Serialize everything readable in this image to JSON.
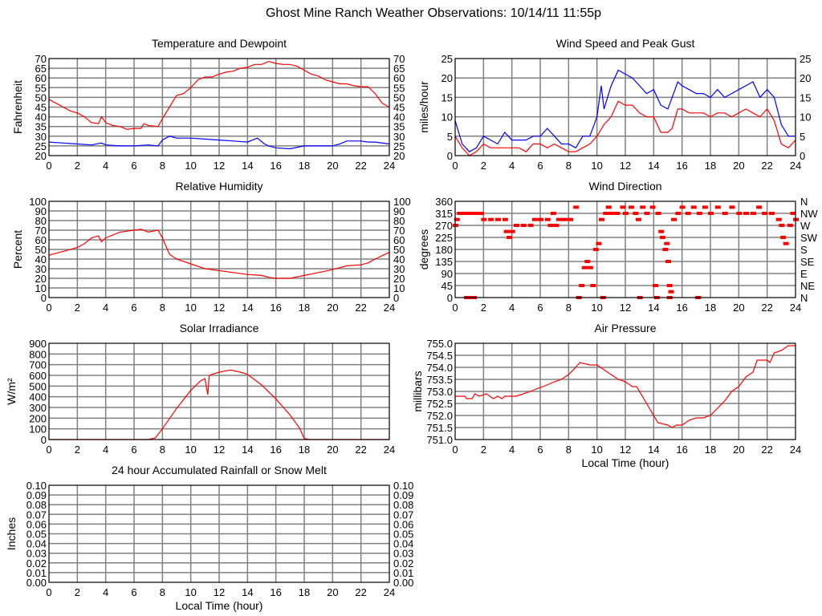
{
  "title": "Ghost Mine Ranch Weather Observations: 10/14/11 11:55p",
  "colors": {
    "grid": "#808080",
    "red": "#ff0000",
    "blue": "#0000ff"
  },
  "chart_data": [
    {
      "id": "temp",
      "type": "line",
      "title": "Temperature and Dewpoint",
      "ylabel": "Fahrenheit",
      "xlabel": "",
      "xlim": [
        0,
        24
      ],
      "xticks": [
        0,
        2,
        4,
        6,
        8,
        10,
        12,
        14,
        16,
        18,
        20,
        22,
        24
      ],
      "ylim": [
        20,
        70
      ],
      "yticks": [
        20,
        25,
        30,
        35,
        40,
        45,
        50,
        55,
        60,
        65,
        70
      ],
      "right_axis": true,
      "grid": true,
      "series": [
        {
          "color": "#ff0000",
          "x": [
            0,
            0.5,
            1,
            1.5,
            2,
            2.5,
            3,
            3.5,
            3.7,
            4,
            4.5,
            5,
            5.5,
            6,
            6.5,
            6.7,
            7,
            7.7,
            8,
            8.5,
            9,
            9.5,
            10,
            10.5,
            11,
            11.5,
            12,
            12.5,
            13,
            13.5,
            14,
            14.5,
            15,
            15.5,
            16,
            16.5,
            17,
            17.5,
            18,
            18.5,
            19,
            19.5,
            20,
            20.5,
            21,
            21.5,
            22,
            22.5,
            23,
            23.5,
            24
          ],
          "y": [
            49,
            47,
            45,
            43,
            42,
            40,
            37,
            36.5,
            40,
            37,
            35.5,
            35,
            33.5,
            34,
            34,
            36.5,
            35.5,
            35,
            39,
            45,
            51,
            52,
            55,
            59,
            60.5,
            60.5,
            62,
            63,
            63.5,
            65,
            65.5,
            67,
            67,
            68.5,
            67.5,
            67,
            67,
            66,
            64,
            62,
            61,
            59,
            58,
            57,
            57,
            56,
            55.5,
            55.5,
            52,
            47,
            45
          ]
        },
        {
          "color": "#0000ff",
          "x": [
            0,
            1,
            2,
            3,
            3.7,
            4,
            5,
            6,
            7,
            7.7,
            8,
            8.5,
            9,
            10,
            11,
            12,
            13,
            14,
            14.7,
            15.2,
            15.5,
            16,
            17,
            18,
            19,
            20,
            20.5,
            21,
            22,
            22.5,
            23,
            24
          ],
          "y": [
            27,
            26.5,
            26,
            25.5,
            26.5,
            25.5,
            25,
            25,
            25.5,
            25,
            28,
            30,
            29,
            29,
            28.5,
            28,
            27.5,
            27,
            29,
            26,
            25,
            24,
            23.5,
            25,
            25,
            25,
            26,
            27.5,
            27.5,
            27,
            27,
            26
          ]
        }
      ]
    },
    {
      "id": "wind",
      "type": "line",
      "title": "Wind Speed and Peak Gust",
      "ylabel": "miles/hour",
      "xlabel": "",
      "xlim": [
        0,
        24
      ],
      "xticks": [
        0,
        2,
        4,
        6,
        8,
        10,
        12,
        14,
        16,
        18,
        20,
        22,
        24
      ],
      "ylim": [
        0,
        25
      ],
      "yticks": [
        0,
        5,
        10,
        15,
        20,
        25
      ],
      "right_axis": true,
      "grid": true,
      "series": [
        {
          "color": "#0000ff",
          "x": [
            0,
            0.5,
            1,
            1.5,
            2,
            2.5,
            3,
            3.5,
            4,
            4.5,
            5,
            5.5,
            6,
            6.5,
            7,
            7.5,
            8,
            8.5,
            9,
            9.5,
            10,
            10.3,
            10.5,
            11,
            11.5,
            12,
            12.5,
            13,
            13.5,
            14,
            14.5,
            15,
            15.3,
            15.7,
            16,
            16.5,
            17,
            17.5,
            18,
            18.5,
            19,
            19.5,
            20,
            20.5,
            21,
            21.5,
            22,
            22.5,
            23,
            23.5,
            24
          ],
          "y": [
            9,
            3,
            1,
            2,
            5,
            4,
            3,
            6,
            4,
            4,
            4,
            5,
            5,
            7,
            5,
            3,
            3,
            2,
            5,
            5,
            10,
            18,
            12,
            18,
            22,
            21,
            20,
            18,
            16,
            17,
            13,
            12,
            15,
            19,
            18,
            17,
            16,
            16,
            15,
            17,
            15,
            16,
            17,
            18,
            19,
            15,
            17,
            15,
            8,
            5,
            5
          ]
        },
        {
          "color": "#ff0000",
          "x": [
            0,
            0.5,
            1,
            1.5,
            2,
            2.5,
            3,
            3.5,
            4,
            4.5,
            5,
            5.5,
            6,
            6.5,
            7,
            7.5,
            8,
            8.5,
            9,
            9.5,
            10,
            10.5,
            11,
            11.5,
            12,
            12.5,
            13,
            13.5,
            14,
            14.5,
            15,
            15.3,
            15.7,
            16,
            16.5,
            17,
            17.5,
            18,
            18.5,
            19,
            19.5,
            20,
            20.5,
            21,
            21.5,
            22,
            22.5,
            23,
            23.5,
            24
          ],
          "y": [
            5,
            2,
            0,
            1,
            3,
            2,
            2,
            2,
            2,
            2,
            1,
            3,
            3,
            2,
            3,
            2,
            1,
            1,
            2,
            3,
            5,
            8,
            10,
            14,
            13,
            13,
            11,
            10,
            10,
            6,
            6,
            7,
            12,
            12,
            11,
            11,
            11,
            10,
            11,
            11,
            10,
            11,
            12,
            11,
            10,
            12,
            9,
            3,
            2,
            4
          ]
        }
      ]
    },
    {
      "id": "rh",
      "type": "line",
      "title": "Relative Humidity",
      "ylabel": "Percent",
      "xlabel": "",
      "xlim": [
        0,
        24
      ],
      "xticks": [
        0,
        2,
        4,
        6,
        8,
        10,
        12,
        14,
        16,
        18,
        20,
        22,
        24
      ],
      "ylim": [
        0,
        100
      ],
      "yticks": [
        0,
        10,
        20,
        30,
        40,
        50,
        60,
        70,
        80,
        90,
        100
      ],
      "right_axis": true,
      "grid": true,
      "series": [
        {
          "color": "#ff0000",
          "x": [
            0,
            1,
            2,
            2.5,
            3,
            3.5,
            3.7,
            4,
            5,
            6,
            6.5,
            7,
            7.7,
            8,
            8.5,
            9,
            10,
            11,
            12,
            13,
            14,
            15,
            15.5,
            16,
            17,
            18,
            19,
            20,
            21,
            22,
            22.5,
            23,
            24
          ],
          "y": [
            44,
            48,
            52,
            56,
            62,
            64,
            58,
            62,
            68,
            70,
            71,
            68,
            70,
            62,
            45,
            40,
            35,
            30,
            28,
            26,
            24,
            23,
            21,
            20,
            20,
            23,
            26,
            29,
            33,
            34,
            36,
            40,
            47
          ]
        }
      ]
    },
    {
      "id": "dir",
      "type": "scatter",
      "title": "Wind Direction",
      "ylabel": "degrees",
      "xlabel": "",
      "xlim": [
        0,
        24
      ],
      "xticks": [
        0,
        2,
        4,
        6,
        8,
        10,
        12,
        14,
        16,
        18,
        20,
        22,
        24
      ],
      "ylim": [
        0,
        360
      ],
      "yticks": [
        0,
        45,
        90,
        135,
        180,
        225,
        270,
        315,
        360
      ],
      "grid": true,
      "right_labels": [
        "N",
        "NE",
        "E",
        "SE",
        "S",
        "SW",
        "W",
        "NW",
        "N"
      ],
      "series": [
        {
          "color": "#ff0000",
          "x": [
            0,
            0.1,
            0.3,
            0.6,
            0.9,
            1.2,
            1.5,
            1.8,
            2,
            2.5,
            3,
            3.5,
            3.6,
            3.8,
            4,
            4.3,
            4.8,
            5.3,
            5.6,
            6,
            6.5,
            6.7,
            6.9,
            7.1,
            7.3,
            7.7,
            8.1,
            8.5,
            8.9,
            9.1,
            9.3,
            9.5,
            9.7,
            9.9,
            10.1,
            10.3,
            10.6,
            10.8,
            11,
            11.4,
            11.8,
            12,
            12.4,
            12.7,
            12.9,
            13.2,
            13.5,
            13.9,
            14.1,
            14.3,
            14.5,
            14.6,
            14.8,
            14.9,
            15,
            15.1,
            15.2,
            15.4,
            15.7,
            16,
            16.4,
            16.8,
            17.2,
            17.6,
            18,
            18.5,
            19,
            19.5,
            20,
            20.5,
            21,
            21.4,
            21.8,
            22.3,
            22.8,
            23,
            23.1,
            23.3,
            23.6,
            23.8,
            24,
            0.8,
            1.1,
            1.3,
            8.7,
            10.4,
            13,
            14.2,
            15.1,
            17.1
          ],
          "y": [
            270,
            292,
            315,
            315,
            315,
            315,
            315,
            315,
            292,
            292,
            292,
            292,
            247,
            225,
            247,
            270,
            270,
            270,
            292,
            292,
            292,
            270,
            315,
            270,
            292,
            292,
            292,
            338,
            45,
            112,
            135,
            112,
            45,
            180,
            202,
            292,
            315,
            338,
            315,
            315,
            338,
            315,
            338,
            315,
            292,
            338,
            315,
            338,
            45,
            315,
            247,
            225,
            180,
            202,
            135,
            45,
            22,
            292,
            315,
            338,
            315,
            338,
            315,
            338,
            315,
            338,
            315,
            338,
            315,
            315,
            315,
            338,
            315,
            315,
            292,
            270,
            225,
            202,
            270,
            315,
            292,
            0,
            0,
            0,
            0,
            0,
            0,
            0,
            0,
            0
          ]
        }
      ]
    },
    {
      "id": "solar",
      "type": "line",
      "title": "Solar Irradiance",
      "ylabel": "W/m²",
      "xlabel": "",
      "xlim": [
        0,
        24
      ],
      "xticks": [
        0,
        2,
        4,
        6,
        8,
        10,
        12,
        14,
        16,
        18,
        20,
        22,
        24
      ],
      "ylim": [
        0,
        900
      ],
      "yticks": [
        0,
        100,
        200,
        300,
        400,
        500,
        600,
        700,
        800,
        900
      ],
      "grid": true,
      "series": [
        {
          "color": "#ff0000",
          "x": [
            0,
            7,
            7.5,
            8,
            9,
            10,
            10.7,
            11,
            11.2,
            11.3,
            11.5,
            12,
            12.8,
            13.5,
            14,
            15,
            16,
            17,
            17.7,
            18,
            18.4,
            24
          ],
          "y": [
            0,
            0,
            15,
            100,
            290,
            460,
            550,
            570,
            420,
            600,
            610,
            630,
            650,
            630,
            610,
            510,
            380,
            230,
            100,
            10,
            0,
            0
          ]
        }
      ]
    },
    {
      "id": "press",
      "type": "line",
      "title": "Air Pressure",
      "ylabel": "millibars",
      "xlabel": "Local Time (hour)",
      "xlim": [
        0,
        24
      ],
      "xticks": [
        0,
        2,
        4,
        6,
        8,
        10,
        12,
        14,
        16,
        18,
        20,
        22,
        24
      ],
      "ylim": [
        751.0,
        755.0
      ],
      "yticks": [
        "751.0",
        "751.5",
        "752.0",
        "752.5",
        "753.0",
        "753.5",
        "754.0",
        "754.5",
        "755.0"
      ],
      "grid": true,
      "series": [
        {
          "color": "#ff0000",
          "x": [
            0,
            0.7,
            0.8,
            1.2,
            1.4,
            1.7,
            2.2,
            2.7,
            3,
            3.3,
            3.5,
            4.3,
            4.8,
            5.3,
            5.7,
            6.2,
            7,
            7.5,
            8,
            8.5,
            8.8,
            9.5,
            10,
            10.5,
            11,
            11.5,
            12,
            12.5,
            12.8,
            13.5,
            14,
            14.3,
            15,
            15.3,
            15.6,
            16,
            16.5,
            17,
            17.5,
            18,
            18.5,
            19,
            19.5,
            20,
            20.5,
            21,
            21.3,
            22,
            22.2,
            22.5,
            23,
            23.5,
            24
          ],
          "y": [
            752.8,
            752.8,
            752.7,
            752.7,
            752.9,
            752.8,
            752.9,
            752.7,
            752.8,
            752.7,
            752.8,
            752.8,
            752.9,
            753.0,
            753.1,
            753.2,
            753.4,
            753.5,
            753.7,
            754.0,
            754.2,
            754.1,
            754.1,
            753.9,
            753.7,
            753.5,
            753.4,
            753.2,
            753.2,
            752.5,
            752.0,
            751.7,
            751.6,
            751.5,
            751.6,
            751.6,
            751.8,
            751.9,
            751.9,
            752.0,
            752.3,
            752.6,
            753.0,
            753.2,
            753.6,
            753.8,
            754.3,
            754.3,
            754.2,
            754.6,
            754.7,
            754.9,
            754.9
          ]
        }
      ]
    },
    {
      "id": "rain",
      "type": "line",
      "title": "24 hour Accumulated Rainfall or Snow Melt",
      "ylabel": "Inches",
      "xlabel": "Local Time (hour)",
      "xlim": [
        0,
        24
      ],
      "xticks": [
        0,
        2,
        4,
        6,
        8,
        10,
        12,
        14,
        16,
        18,
        20,
        22,
        24
      ],
      "ylim": [
        0,
        0.1
      ],
      "yticks": [
        "0.00",
        "0.01",
        "0.02",
        "0.03",
        "0.04",
        "0.05",
        "0.06",
        "0.07",
        "0.08",
        "0.09",
        "0.10"
      ],
      "right_axis": true,
      "grid": true,
      "series": []
    }
  ]
}
